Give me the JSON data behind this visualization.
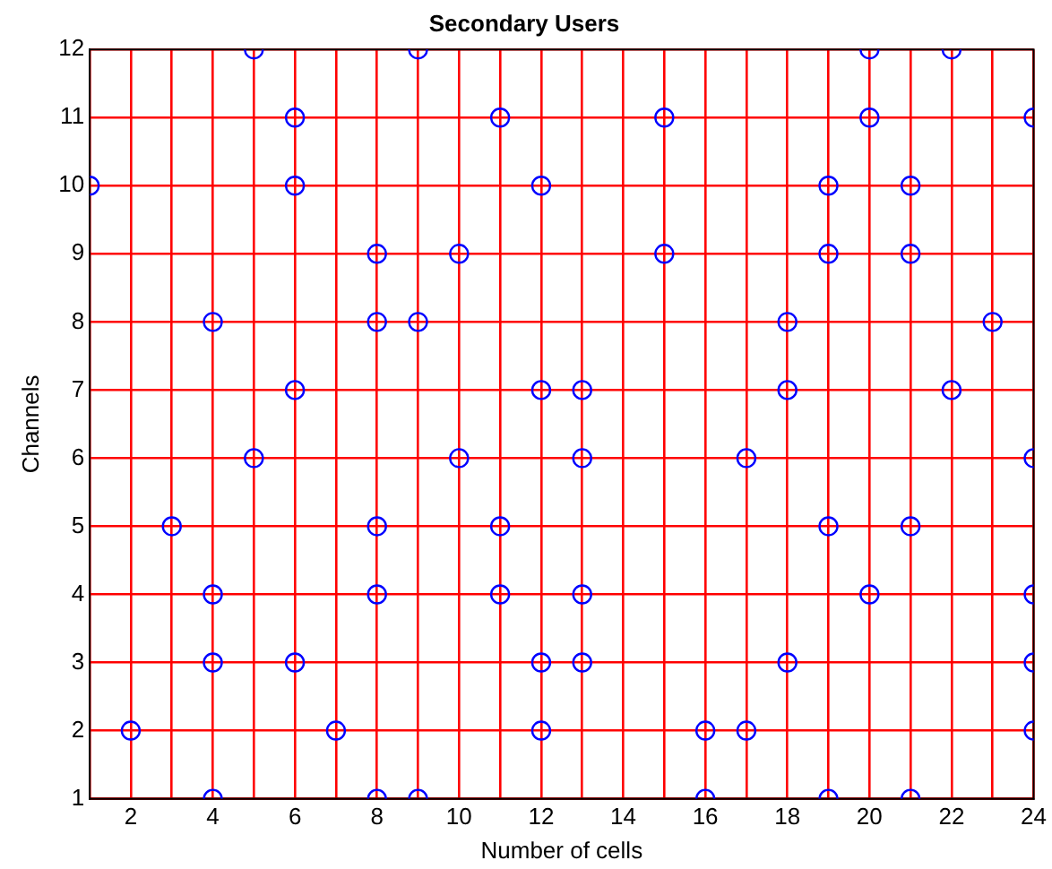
{
  "chart_data": {
    "type": "scatter",
    "title": "Secondary Users",
    "xlabel": "Number of cells",
    "ylabel": "Channels",
    "xlim": [
      1,
      24
    ],
    "ylim": [
      1,
      12
    ],
    "xticks": [
      {
        "value": 1,
        "label": null
      },
      2,
      {
        "value": 3,
        "label": null
      },
      4,
      {
        "value": 5,
        "label": null
      },
      6,
      {
        "value": 7,
        "label": null
      },
      8,
      {
        "value": 9,
        "label": null
      },
      10,
      {
        "value": 11,
        "label": null
      },
      12,
      {
        "value": 13,
        "label": null
      },
      14,
      {
        "value": 15,
        "label": null
      },
      16,
      {
        "value": 17,
        "label": null
      },
      18,
      {
        "value": 19,
        "label": null
      },
      20,
      {
        "value": 21,
        "label": null
      },
      22,
      {
        "value": 23,
        "label": null
      },
      24
    ],
    "yticks": [
      1,
      2,
      3,
      4,
      5,
      6,
      7,
      8,
      9,
      10,
      11,
      12
    ],
    "grid": true,
    "marker": "circle",
    "series": [
      {
        "color": "#0000ff",
        "x": [
          5,
          9,
          20,
          22,
          6,
          11,
          15,
          20,
          24,
          1,
          6,
          12,
          19,
          21,
          8,
          10,
          15,
          19,
          21,
          4,
          8,
          9,
          18,
          23,
          6,
          12,
          13,
          18,
          22,
          5,
          10,
          13,
          17,
          24,
          3,
          8,
          11,
          19,
          21,
          4,
          8,
          11,
          13,
          20,
          24,
          4,
          6,
          12,
          13,
          18,
          24,
          2,
          7,
          12,
          16,
          17,
          24,
          4,
          8,
          9,
          16,
          19,
          21
        ],
        "values": [
          12,
          12,
          12,
          12,
          11,
          11,
          11,
          11,
          11,
          10,
          10,
          10,
          10,
          10,
          9,
          9,
          9,
          9,
          9,
          8,
          8,
          8,
          8,
          8,
          7,
          7,
          7,
          7,
          7,
          6,
          6,
          6,
          6,
          6,
          5,
          5,
          5,
          5,
          5,
          4,
          4,
          4,
          4,
          4,
          4,
          3,
          3,
          3,
          3,
          3,
          3,
          2,
          2,
          2,
          2,
          2,
          2,
          1,
          1,
          1,
          1,
          1,
          1
        ]
      }
    ]
  }
}
